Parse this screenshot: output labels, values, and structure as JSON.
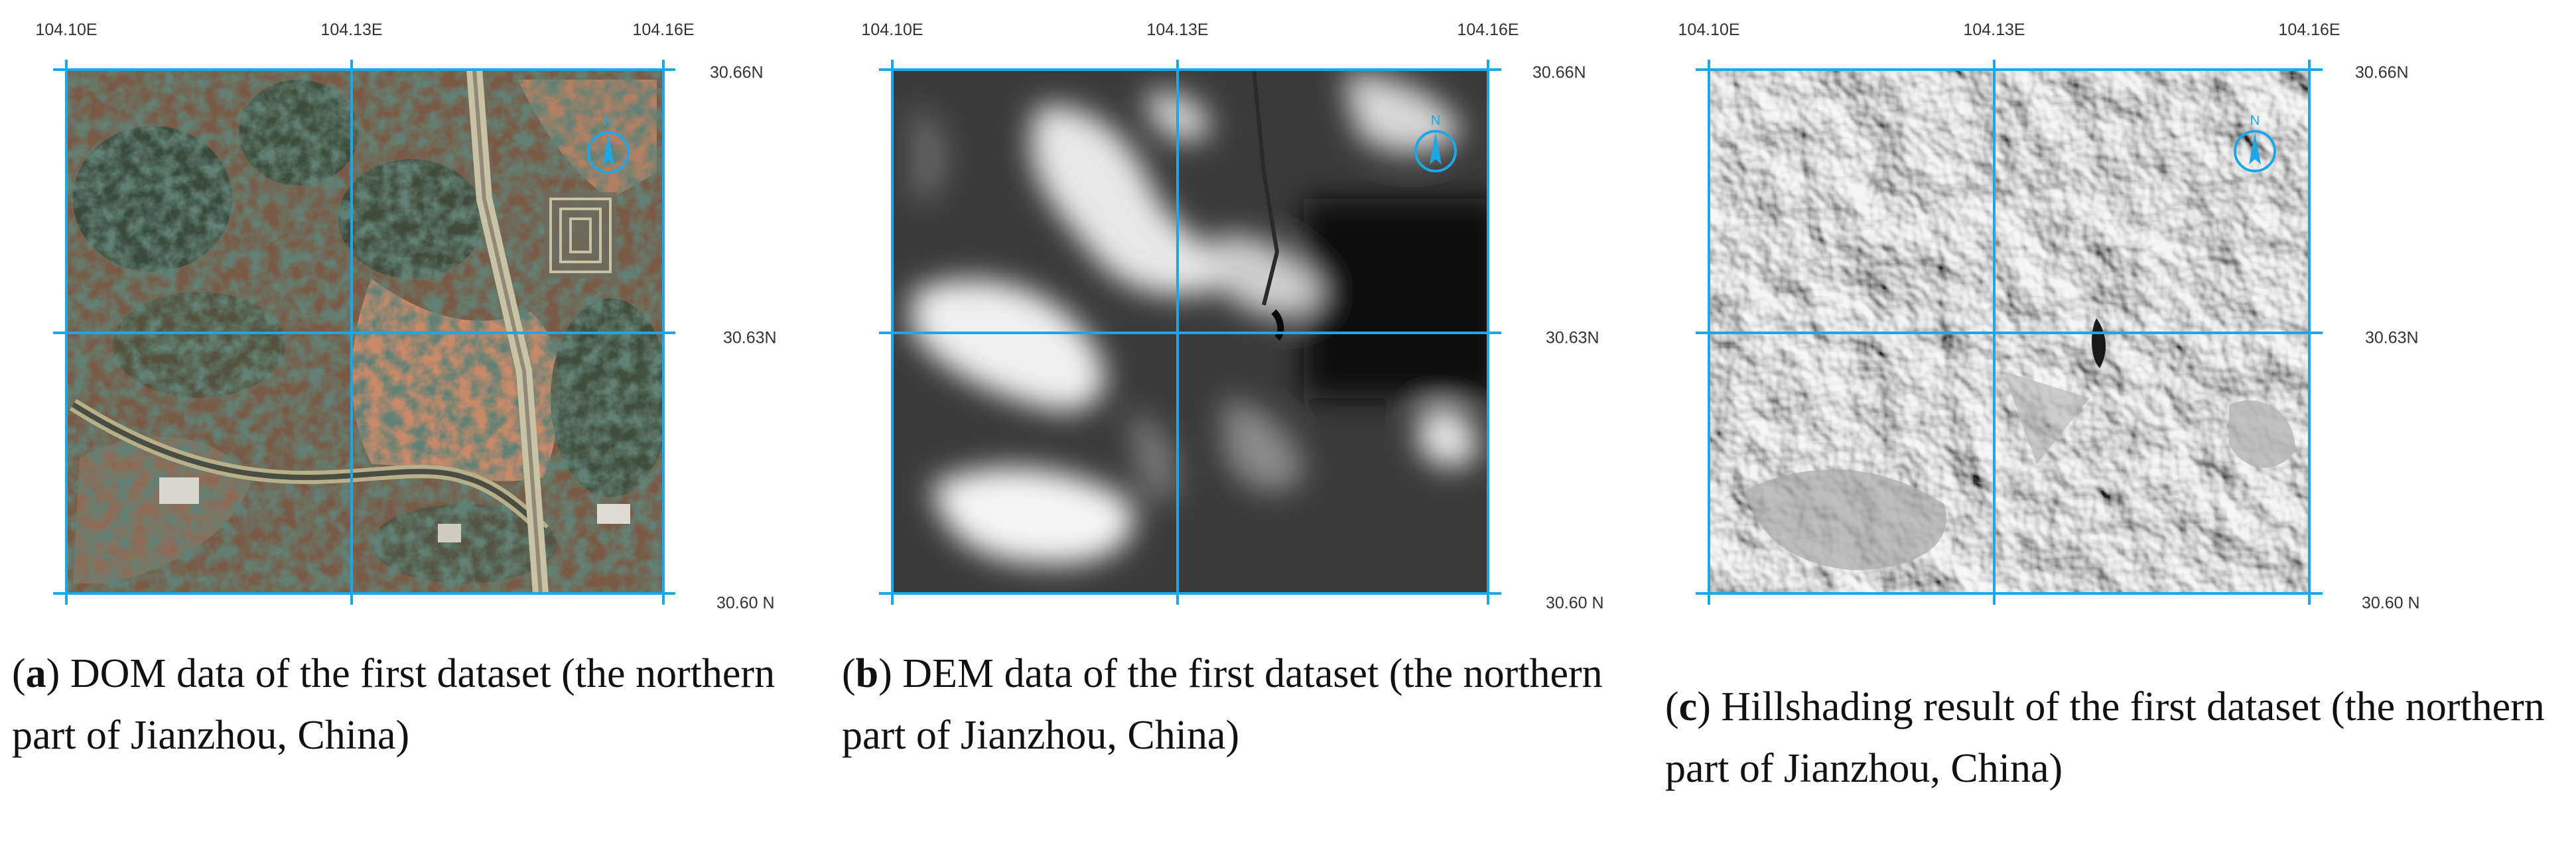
{
  "panels": [
    {
      "id": "a",
      "lon_labels": [
        "104.10E",
        "104.13E",
        "104.16E"
      ],
      "lat_labels": [
        "30.66N",
        "30.63N",
        "30.60 N"
      ],
      "caption_letter": "a",
      "caption_text": "DOM data of the first dataset (the northern part of Jianzhou, China)"
    },
    {
      "id": "b",
      "lon_labels": [
        "104.10E",
        "104.13E",
        "104.16E"
      ],
      "lat_labels": [
        "30.66N",
        "30.63N",
        "30.60 N"
      ],
      "caption_letter": "b",
      "caption_text": "DEM data of the first dataset (the northern part of Jianzhou, China)"
    },
    {
      "id": "c",
      "lon_labels": [
        "104.10E",
        "104.13E",
        "104.16E"
      ],
      "lat_labels": [
        "30.66N",
        "30.63N",
        "30.60 N"
      ],
      "caption_letter": "c",
      "caption_text": "Hillshading result of the first dataset (the northern part of Jianzhou, China)"
    }
  ],
  "colors": {
    "grid_line": "#1ea6e6",
    "north_arrow": "#1ea6e6"
  }
}
